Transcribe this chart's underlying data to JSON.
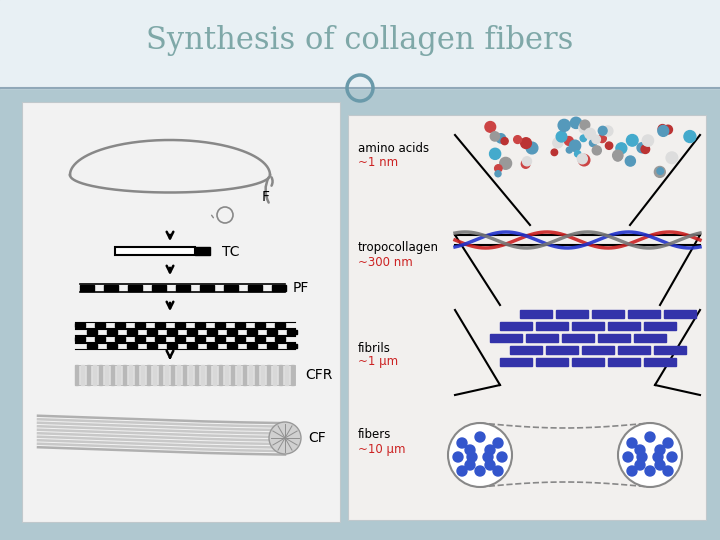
{
  "title": "Synthesis of collagen fibers",
  "title_color": "#7fa8a8",
  "title_fontsize": 22,
  "bg_color": "#b0c8d0",
  "header_bg": "#e8f0f4",
  "left_panel_bg": "#f2f2f2",
  "right_panel_bg": "#f0f0f0",
  "circle_color": "#6a9aaa",
  "header_line_color": "#90a8b8",
  "labels_right_black": [
    "amino acids",
    "tropocollagen",
    "fibrils",
    "fibers"
  ],
  "labels_right_red": [
    "~1 nm",
    "~300 nm",
    "~1 μm",
    "~10 μm"
  ],
  "fig_width": 7.2,
  "fig_height": 5.4,
  "dpi": 100
}
